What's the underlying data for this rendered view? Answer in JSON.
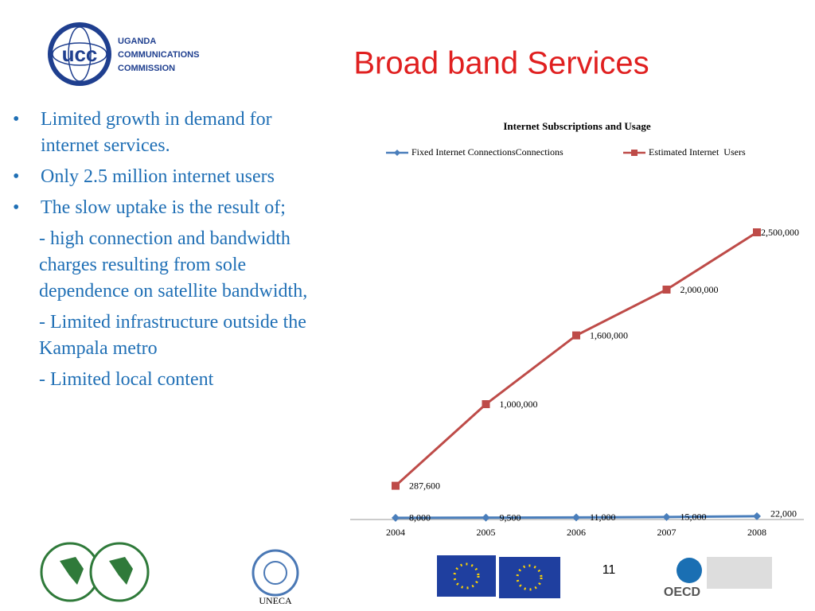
{
  "header": {
    "title": "Broad band Services",
    "logo_lines": [
      "UGANDA",
      "COMMUNICATIONS",
      "COMMISSION"
    ],
    "logo_mark": "ucc"
  },
  "bullets": [
    "Limited growth in demand for internet services.",
    "Only 2.5 million internet users",
    "The slow uptake is the result of;"
  ],
  "sub_points": [
    "- high connection and bandwidth charges resulting from sole dependence on satellite bandwidth,",
    "- Limited infrastructure outside the Kampala metro",
    "- Limited local content"
  ],
  "chart_data": {
    "type": "line",
    "title": "Internet Subscriptions and Usage",
    "categories": [
      "2004",
      "2005",
      "2006",
      "2007",
      "2008"
    ],
    "series": [
      {
        "name": "Fixed Internet ConnectionsConnections",
        "color": "#4a7ebb",
        "values": [
          8000,
          9500,
          11000,
          15000,
          22000
        ],
        "value_labels": [
          "8,000",
          "9,500",
          "11,000",
          "15,000",
          "22,000"
        ]
      },
      {
        "name": "Estimated Internet  Users",
        "color": "#be4b48",
        "values": [
          287600,
          1000000,
          1600000,
          2000000,
          2500000
        ],
        "value_labels": [
          "287,600",
          "1,000,000",
          "1,600,000",
          "2,000,000",
          "2,500,000"
        ]
      }
    ],
    "ylim": [
      0,
      2500000
    ],
    "legend": "top"
  },
  "footer": {
    "uneca": "UNECA",
    "page_number": "11",
    "oecd": "OECD"
  }
}
